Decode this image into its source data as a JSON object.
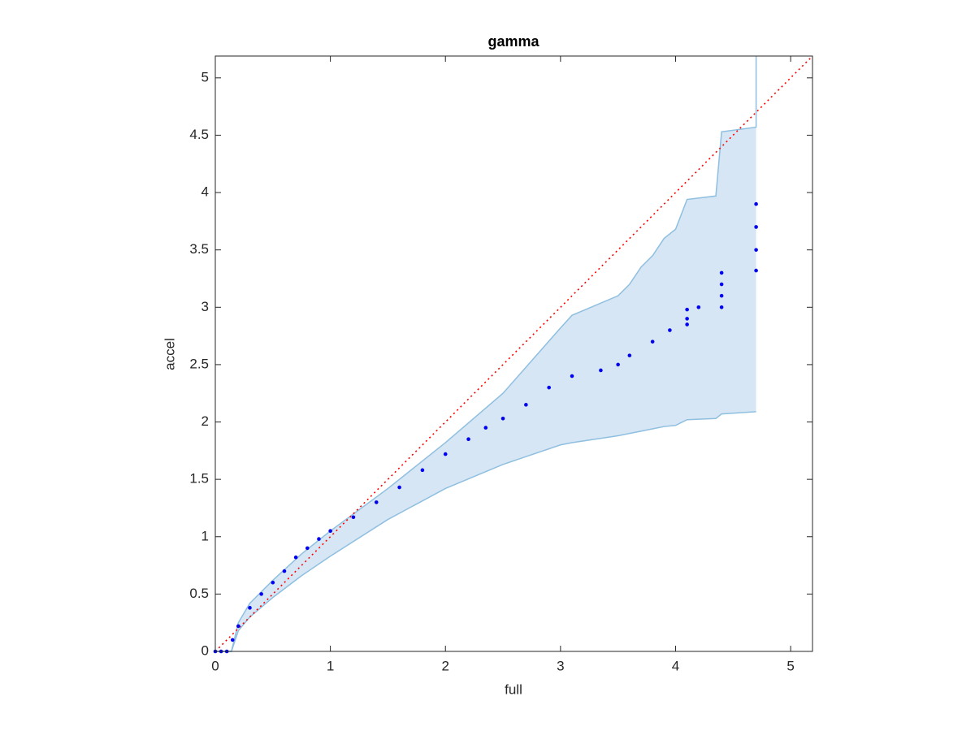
{
  "chart_data": {
    "type": "scatter",
    "title": "gamma",
    "xlabel": "full",
    "ylabel": "accel",
    "xlim": [
      0,
      5.19
    ],
    "ylim": [
      0,
      5.19
    ],
    "xticks": [
      0,
      1,
      2,
      3,
      4,
      5
    ],
    "yticks": [
      0,
      0.5,
      1,
      1.5,
      2,
      2.5,
      3,
      3.5,
      4,
      4.5,
      5
    ],
    "grid": false,
    "band": {
      "color": "#d6e6f4",
      "edge_color": "#8fbfe0",
      "x": [
        0,
        0.14,
        0.2,
        0.3,
        0.5,
        0.75,
        1,
        1.5,
        2,
        2.5,
        3,
        3.1,
        3.5,
        3.6,
        3.7,
        3.8,
        3.9,
        4,
        4.1,
        4.35,
        4.4,
        4.7,
        4.7
      ],
      "lower": [
        0,
        0,
        0.18,
        0.3,
        0.47,
        0.66,
        0.83,
        1.15,
        1.42,
        1.63,
        1.8,
        1.82,
        1.88,
        1.9,
        1.92,
        1.94,
        1.96,
        1.97,
        2.02,
        2.03,
        2.07,
        2.09,
        2.09
      ],
      "upper": [
        0,
        0,
        0.25,
        0.42,
        0.62,
        0.85,
        1.05,
        1.42,
        1.82,
        2.25,
        2.82,
        2.93,
        3.1,
        3.2,
        3.35,
        3.45,
        3.6,
        3.68,
        3.94,
        3.97,
        4.53,
        4.57,
        5.19
      ]
    },
    "points": {
      "color": "#0000ee",
      "x": [
        0,
        0.05,
        0.1,
        0.15,
        0.2,
        0.3,
        0.4,
        0.5,
        0.6,
        0.7,
        0.8,
        0.9,
        1.0,
        1.2,
        1.4,
        1.6,
        1.8,
        2.0,
        2.2,
        2.35,
        2.5,
        2.7,
        2.9,
        3.1,
        3.35,
        3.5,
        3.6,
        3.8,
        3.95,
        4.1,
        4.1,
        4.1,
        4.2,
        4.4,
        4.4,
        4.4,
        4.4,
        4.7,
        4.7,
        4.7,
        4.7
      ],
      "y": [
        0,
        0,
        0,
        0.1,
        0.22,
        0.38,
        0.5,
        0.6,
        0.7,
        0.82,
        0.9,
        0.98,
        1.05,
        1.17,
        1.3,
        1.43,
        1.58,
        1.72,
        1.85,
        1.95,
        2.03,
        2.15,
        2.3,
        2.4,
        2.45,
        2.5,
        2.58,
        2.7,
        2.8,
        2.85,
        2.9,
        2.98,
        3.0,
        3.0,
        3.1,
        3.2,
        3.3,
        3.32,
        3.5,
        3.7,
        3.9
      ]
    },
    "reference_line": {
      "color": "#ff0000",
      "style": "dotted",
      "x": [
        0,
        5.19
      ],
      "y": [
        0,
        5.19
      ]
    }
  }
}
